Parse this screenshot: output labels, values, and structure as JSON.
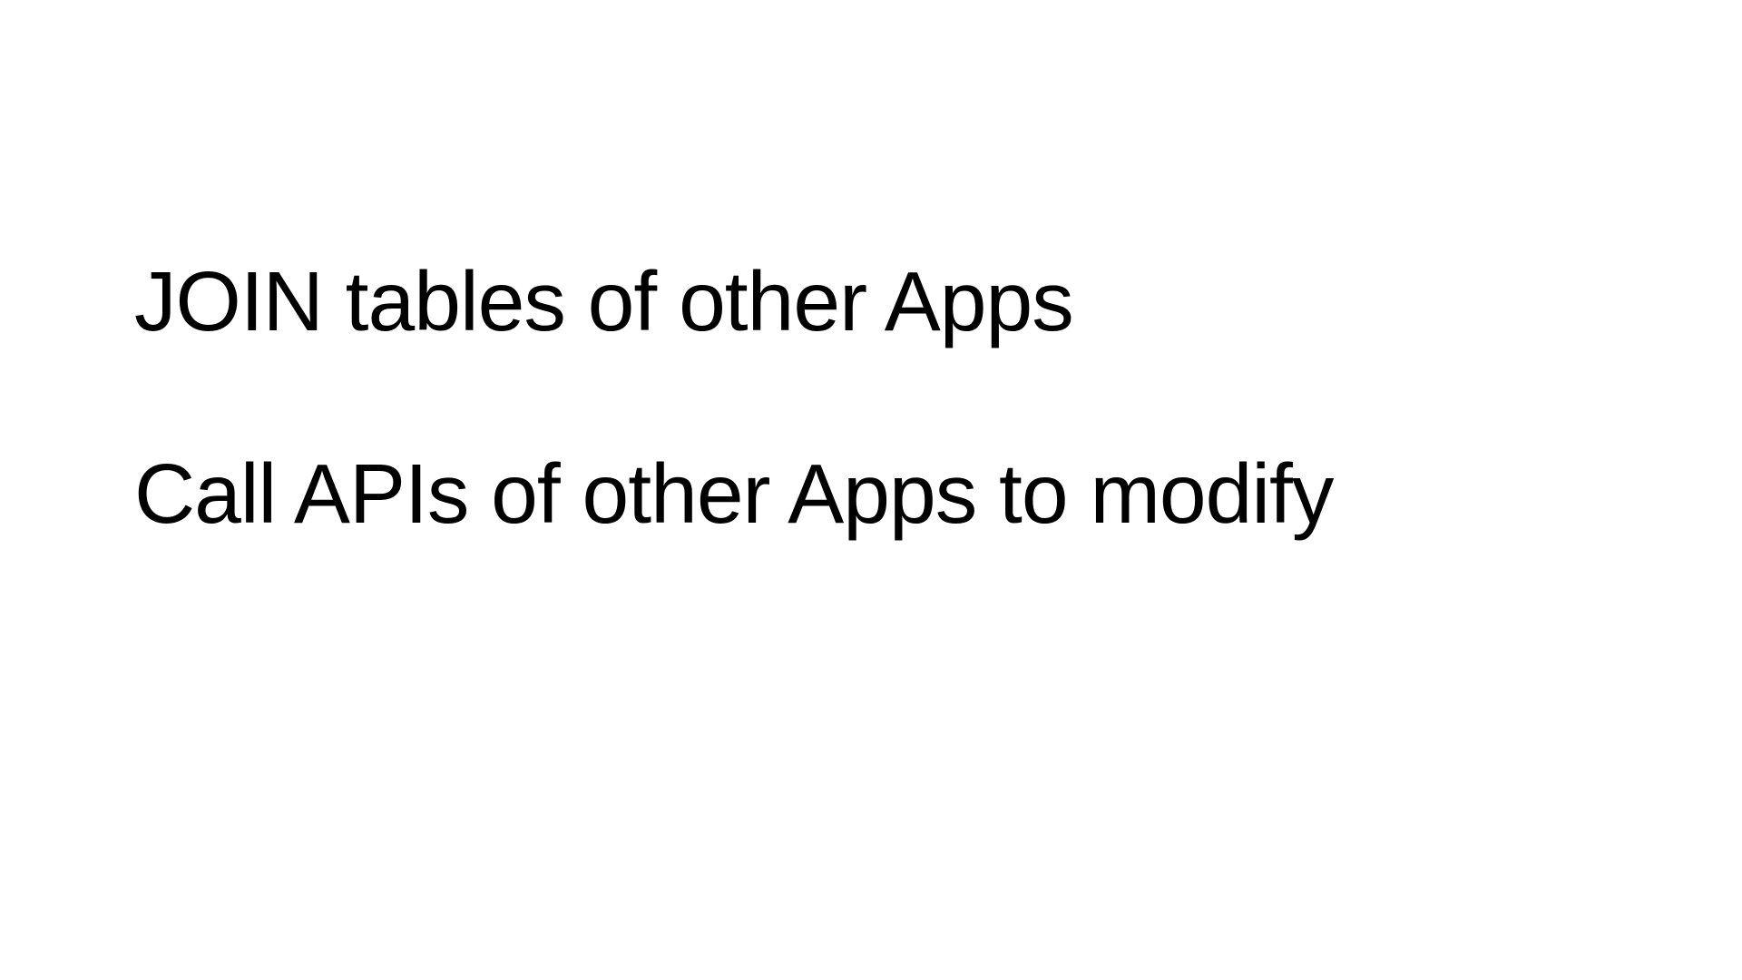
{
  "slide": {
    "lines": [
      "JOIN tables of other Apps",
      "Call APIs of other Apps to modify"
    ]
  }
}
